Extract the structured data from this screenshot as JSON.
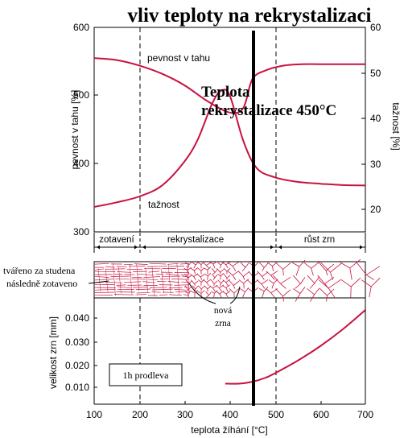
{
  "title": "vliv teploty na rekrystalizaci",
  "recrystallization_label": [
    "Teplota",
    "rekrystalizace 450°C"
  ],
  "top_plot": {
    "ylabel_left": "pevnost v tahu [%]",
    "ylabel_right": "tažnost [%]",
    "left_ticks": [
      "600",
      "500",
      "400",
      "300"
    ],
    "right_ticks": [
      "60",
      "50",
      "40",
      "30",
      "20"
    ],
    "label_strength": "pevnost v tahu",
    "label_ductility": "tažnost"
  },
  "stages": {
    "zotaveni": "zotavení",
    "rekrystalizace": "rekrystalizace",
    "rust": "růst zrn"
  },
  "micro": {
    "left_text": [
      "tvářeno za studena",
      "následně zotaveno"
    ],
    "nova": [
      "nová",
      "zrna"
    ]
  },
  "bottom_plot": {
    "ylabel": "velikost zrn [mm]",
    "y_ticks": [
      "0.040",
      "0.030",
      "0.020",
      "0.010"
    ],
    "note": "1h prodleva",
    "xlabel": "teplota žíhání [°C]",
    "x_ticks": [
      "100",
      "200",
      "300",
      "400",
      "500",
      "600",
      "700"
    ]
  },
  "colors": {
    "curve": "#c8123f",
    "axis": "#000000"
  },
  "chart_data": [
    {
      "type": "line",
      "title": "vliv teploty na rekrystalizaci",
      "xlabel": "",
      "ylabel": "pevnost v tahu [%]",
      "y2label": "tažnost [%]",
      "xlim": [
        100,
        700
      ],
      "ylim": [
        300,
        600
      ],
      "y2lim": [
        15,
        60
      ],
      "series": [
        {
          "name": "pevnost v tahu",
          "axis": "left",
          "x": [
            100,
            150,
            200,
            250,
            300,
            350,
            400,
            430,
            450,
            480,
            520,
            560,
            600,
            650,
            700
          ],
          "y": [
            555,
            552,
            544,
            532,
            515,
            492,
            475,
            482,
            524,
            537,
            544,
            546,
            546,
            546,
            546
          ]
        },
        {
          "name": "tažnost",
          "axis": "right",
          "x": [
            100,
            150,
            200,
            250,
            300,
            330,
            360,
            380,
            400,
            430,
            460,
            500,
            550,
            600,
            650,
            700
          ],
          "y": [
            20.5,
            21.5,
            22.8,
            25.2,
            30.5,
            35.5,
            43,
            46,
            45,
            35,
            29,
            27,
            26,
            25.6,
            25.3,
            25.2
          ]
        }
      ],
      "vlines": [
        200,
        500
      ],
      "highlight_x": 450
    },
    {
      "type": "line",
      "title": "",
      "xlabel": "teplota žíhání [°C]",
      "ylabel": "velikost zrn [mm]",
      "xlim": [
        100,
        700
      ],
      "ylim": [
        0.003,
        0.047
      ],
      "series": [
        {
          "name": "",
          "x": [
            390,
            420,
            450,
            480,
            500,
            550,
            600,
            650,
            700
          ],
          "y": [
            0.0115,
            0.0115,
            0.0123,
            0.014,
            0.0158,
            0.021,
            0.027,
            0.034,
            0.042
          ]
        }
      ],
      "vlines": [
        200,
        500
      ],
      "highlight_x": 450
    }
  ]
}
